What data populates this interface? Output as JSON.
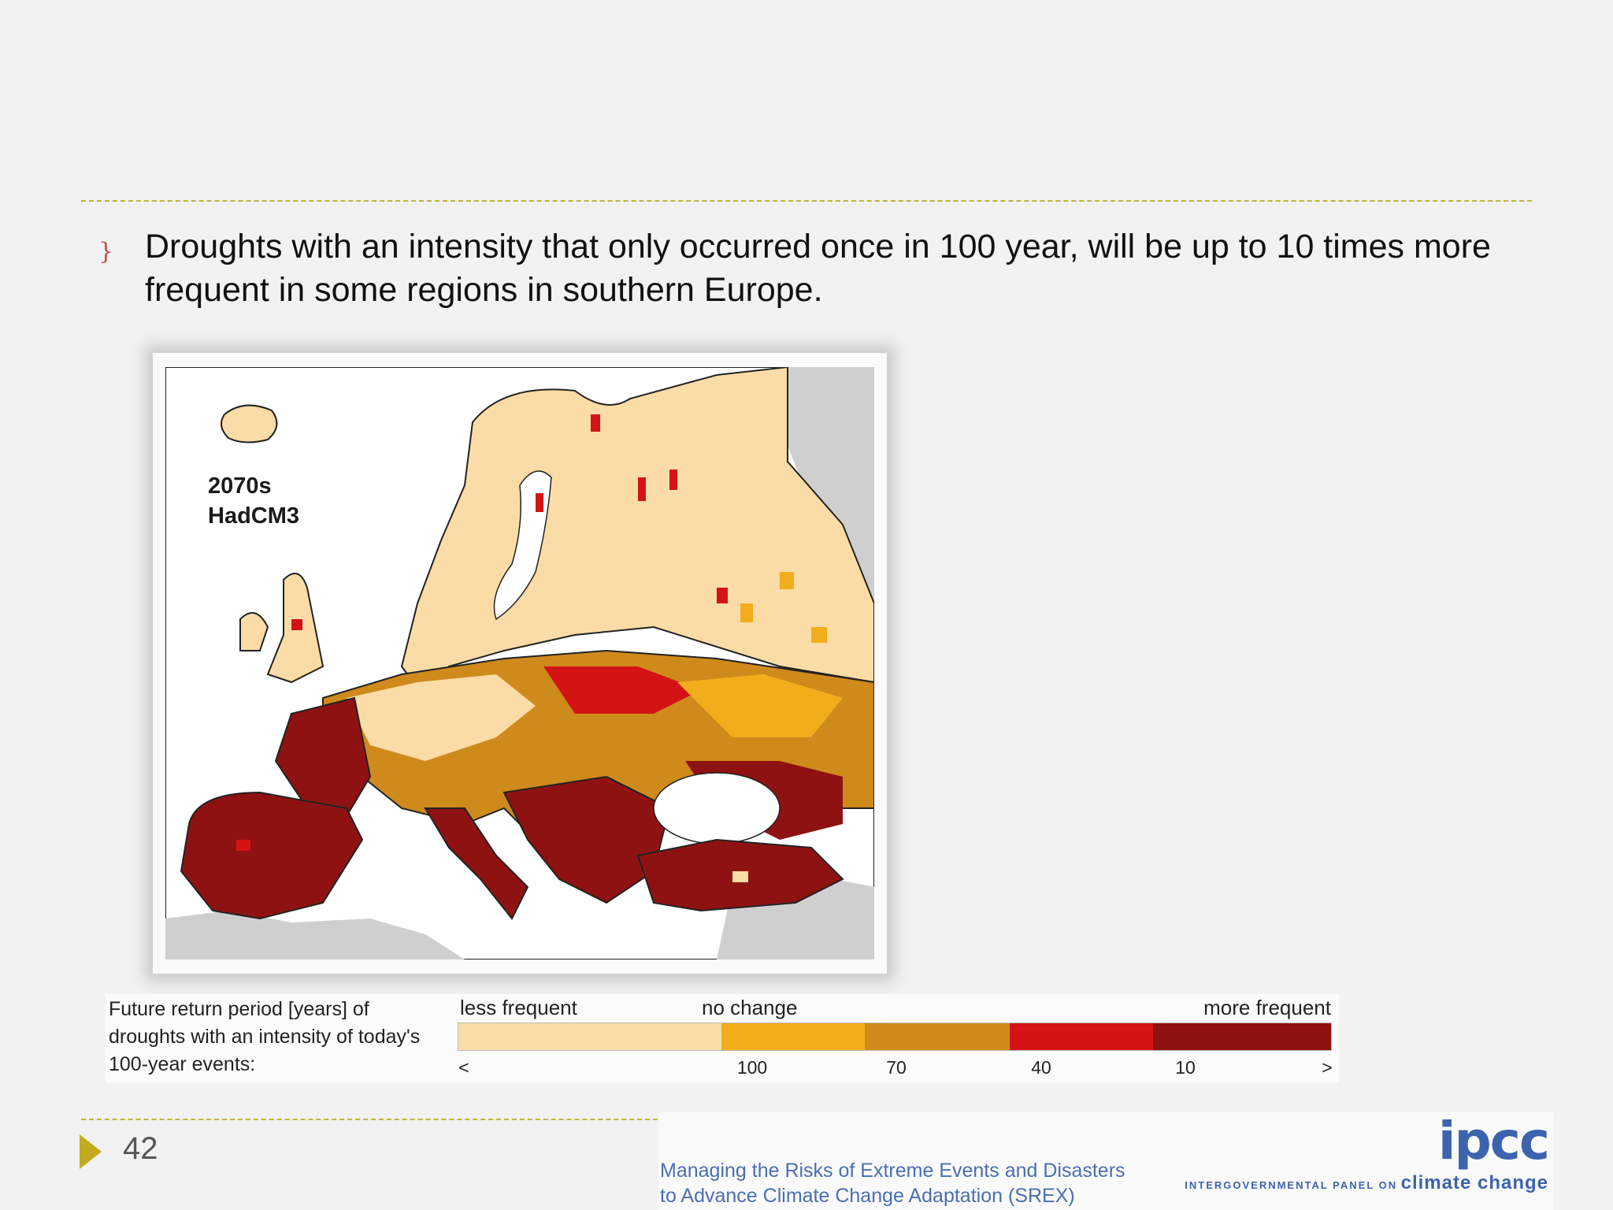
{
  "slide": {
    "bullet_glyph": "}",
    "text": "Droughts with an intensity that only occurred once in 100 year, will be up to 10 times more frequent in some regions in southern Europe."
  },
  "map": {
    "label_period": "2070s",
    "label_model": "HadCM3"
  },
  "legend": {
    "caption": "Future return period [years] of droughts with an intensity of today's 100-year events:",
    "less": "less frequent",
    "nochange": "no change",
    "more": "more frequent",
    "ticks": [
      "<",
      "100",
      "70",
      "40",
      "10",
      ">"
    ],
    "colors": [
      "#fbdca6",
      "#f2ad1c",
      "#cf8a1c",
      "#d41414",
      "#8f1212"
    ]
  },
  "footer": {
    "page_number": "42",
    "srex_line1": "Managing the Risks of Extreme Events and Disasters",
    "srex_line2": "to Advance Climate Change Adaptation (SREX)",
    "logo": "ipcc",
    "panel_small": "INTERGOVERNMENTAL PANEL ON",
    "panel_big": "climate change"
  }
}
